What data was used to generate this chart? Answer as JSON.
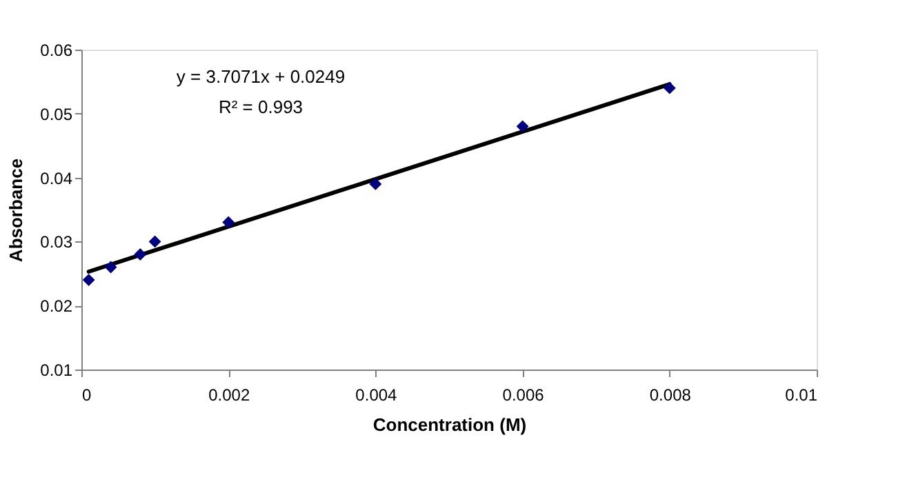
{
  "chart_data": {
    "type": "scatter",
    "xlabel": "Concentration (M)",
    "ylabel": "Absorbance",
    "annotations": [
      "y = 3.7071x + 0.0249",
      "R² = 0.993"
    ],
    "series": [
      {
        "type": "line",
        "color": "#000000",
        "x": [
          0.0001,
          0.008
        ],
        "values": [
          0.0253,
          0.0546
        ]
      },
      {
        "color": "#000080",
        "marker": "diamond",
        "x": [
          0.0001,
          0.0004,
          0.0008,
          0.001,
          0.002,
          0.004,
          0.006,
          0.008
        ],
        "values": [
          0.024,
          0.026,
          0.028,
          0.03,
          0.033,
          0.039,
          0.048,
          0.054
        ]
      }
    ],
    "xlim": [
      0,
      0.01
    ],
    "xticks": [
      0,
      0.002,
      0.004,
      0.006,
      0.008,
      0.01
    ],
    "ylim": [
      0.01,
      0.06
    ],
    "yticks": [
      0.01,
      0.02,
      0.03,
      0.04,
      0.05,
      0.06
    ],
    "grid": false
  }
}
